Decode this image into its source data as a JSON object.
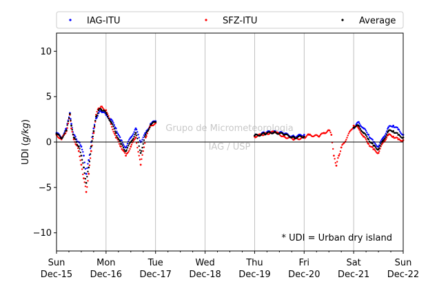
{
  "chart_data": {
    "type": "scatter",
    "ylabel_prefix": "UDI (",
    "ylabel_unit": "g/kg",
    "ylabel_suffix": ")",
    "ylim": [
      -12,
      12
    ],
    "yticks": [
      -10,
      -5,
      0,
      5,
      10
    ],
    "xlim": [
      "2019-12-15",
      "2019-12-22"
    ],
    "xticks": [
      {
        "day": "Sun",
        "date": "Dec-15"
      },
      {
        "day": "Mon",
        "date": "Dec-16"
      },
      {
        "day": "Tue",
        "date": "Dec-17"
      },
      {
        "day": "Wed",
        "date": "Dec-18"
      },
      {
        "day": "Thu",
        "date": "Dec-19"
      },
      {
        "day": "Fri",
        "date": "Dec-20"
      },
      {
        "day": "Sat",
        "date": "Dec-21"
      },
      {
        "day": "Sun",
        "date": "Dec-22"
      }
    ],
    "grid": "vertical",
    "legend_position": "top",
    "watermark": [
      "Grupo de Micrometeorologia",
      "IAG / USP"
    ],
    "annotation": "* UDI = Urban dry island",
    "series": [
      {
        "name": "IAG-ITU",
        "color": "#0000ff",
        "x": [
          0.0,
          0.1,
          0.2,
          0.27,
          0.3,
          0.35,
          0.4,
          0.45,
          0.5,
          0.55,
          0.6,
          0.65,
          0.7,
          0.75,
          0.8,
          0.85,
          0.9,
          1.0,
          1.1,
          1.2,
          1.3,
          1.4,
          1.5,
          1.6,
          1.7,
          1.8,
          1.9,
          2.0,
          4.0,
          4.2,
          4.4,
          4.6,
          4.8,
          5.0,
          6.0,
          6.1,
          6.2,
          6.3,
          6.4,
          6.5,
          6.6,
          6.7,
          6.8,
          6.9,
          7.0
        ],
        "y": [
          1.0,
          0.5,
          1.5,
          3.2,
          2.0,
          0.8,
          0.3,
          0.0,
          -0.5,
          -1.5,
          -3.5,
          -2.0,
          0.0,
          1.5,
          2.6,
          3.2,
          3.4,
          3.0,
          2.5,
          1.5,
          0.2,
          -0.6,
          0.5,
          1.5,
          0.0,
          1.0,
          2.0,
          2.3,
          0.7,
          1.0,
          1.2,
          0.9,
          0.6,
          0.8,
          1.5,
          2.2,
          1.5,
          0.8,
          0.0,
          -0.5,
          0.5,
          1.6,
          1.8,
          1.4,
          0.8
        ]
      },
      {
        "name": "SFZ-ITU",
        "color": "#ff0000",
        "x": [
          0.0,
          0.1,
          0.2,
          0.27,
          0.3,
          0.35,
          0.4,
          0.45,
          0.5,
          0.55,
          0.6,
          0.65,
          0.7,
          0.75,
          0.8,
          0.85,
          0.9,
          1.0,
          1.1,
          1.2,
          1.3,
          1.4,
          1.5,
          1.6,
          1.7,
          1.8,
          1.9,
          2.0,
          4.0,
          4.2,
          4.4,
          4.6,
          4.8,
          5.0,
          5.1,
          5.3,
          5.4,
          5.5,
          5.55,
          5.6,
          5.65,
          5.7,
          5.75,
          6.0,
          6.1,
          6.2,
          6.3,
          6.4,
          6.5,
          6.6,
          6.7,
          6.8,
          6.9,
          7.0
        ],
        "y": [
          0.8,
          0.3,
          1.2,
          3.0,
          1.5,
          0.3,
          -0.3,
          -1.0,
          -2.5,
          -4.0,
          -5.5,
          -3.5,
          -1.0,
          1.0,
          3.0,
          3.7,
          3.9,
          3.5,
          2.0,
          0.5,
          -0.5,
          -1.5,
          -0.5,
          0.5,
          -2.5,
          0.5,
          1.8,
          2.1,
          0.6,
          0.9,
          1.1,
          0.6,
          0.3,
          0.5,
          0.8,
          0.6,
          1.0,
          1.3,
          0.8,
          -1.5,
          -2.6,
          -1.5,
          -0.6,
          1.8,
          1.5,
          0.6,
          -0.2,
          -0.8,
          -1.2,
          0.0,
          0.8,
          0.6,
          0.3,
          0.2
        ]
      },
      {
        "name": "Average",
        "color": "#000000",
        "x": [
          0.0,
          0.1,
          0.2,
          0.27,
          0.3,
          0.35,
          0.4,
          0.45,
          0.5,
          0.55,
          0.6,
          0.65,
          0.7,
          0.75,
          0.8,
          0.85,
          0.9,
          1.0,
          1.1,
          1.2,
          1.3,
          1.4,
          1.5,
          1.6,
          1.7,
          1.8,
          1.9,
          2.0,
          4.0,
          4.2,
          4.4,
          4.6,
          4.8,
          5.0,
          6.0,
          6.1,
          6.2,
          6.3,
          6.4,
          6.5,
          6.6,
          6.7,
          6.8,
          6.9,
          7.0
        ],
        "y": [
          0.9,
          0.4,
          1.3,
          3.1,
          1.8,
          0.5,
          0.0,
          -0.5,
          -1.5,
          -2.8,
          -4.5,
          -2.8,
          -0.5,
          1.2,
          2.8,
          3.5,
          3.6,
          3.2,
          2.2,
          1.0,
          -0.2,
          -1.0,
          0.0,
          1.0,
          -1.2,
          0.8,
          1.9,
          2.2,
          0.7,
          0.9,
          1.1,
          0.8,
          0.5,
          0.6,
          1.6,
          1.8,
          1.0,
          0.3,
          -0.4,
          -0.8,
          0.2,
          1.2,
          1.2,
          0.8,
          0.5
        ]
      }
    ]
  }
}
